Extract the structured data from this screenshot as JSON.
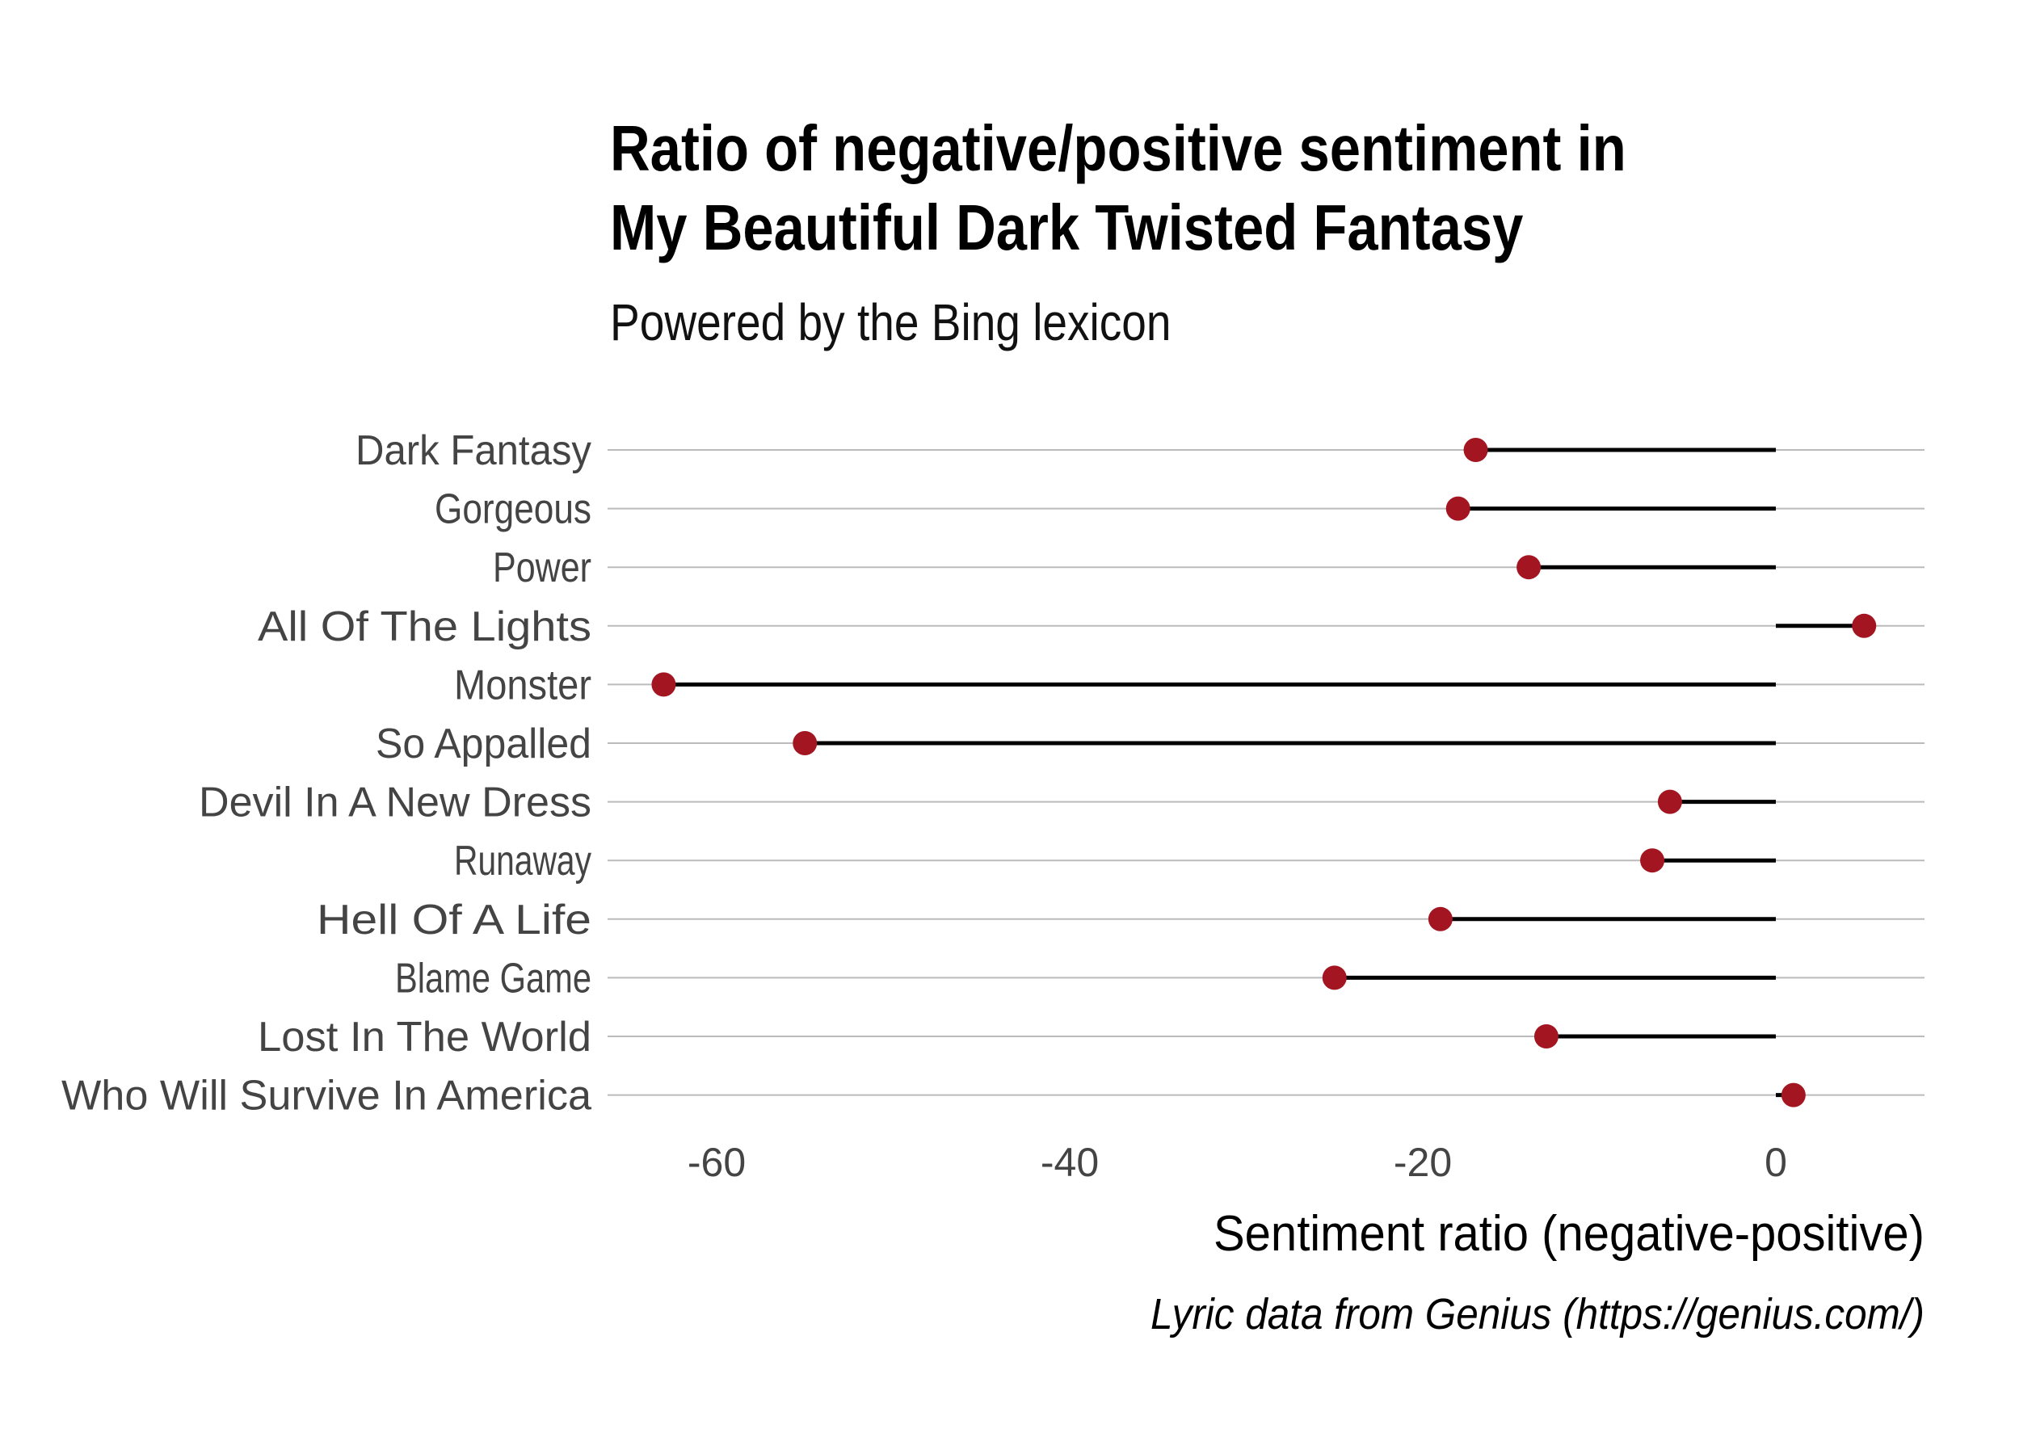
{
  "title_line1": "Ratio of negative/positive sentiment in",
  "title_line2": "My Beautiful Dark Twisted Fantasy",
  "subtitle": "Powered by the Bing lexicon",
  "caption": "Lyric data from Genius (https://genius.com/)",
  "chart_data": {
    "type": "lollipop",
    "title": "Ratio of negative/positive sentiment in My Beautiful Dark Twisted Fantasy",
    "subtitle": "Powered by the Bing lexicon",
    "xlabel": "Sentiment ratio (negative-positive)",
    "ylabel": "",
    "xlim": [
      -66,
      8
    ],
    "x_ticks": [
      -60,
      -40,
      -20,
      0
    ],
    "categories": [
      "Dark Fantasy",
      "Gorgeous",
      "Power",
      "All Of The Lights",
      "Monster",
      "So Appalled",
      "Devil In A New Dress",
      "Runaway",
      "Hell Of A Life",
      "Blame Game",
      "Lost In The World",
      "Who Will Survive In America"
    ],
    "values": [
      -17,
      -18,
      -14,
      5,
      -63,
      -55,
      -6,
      -7,
      -19,
      -25,
      -13,
      1
    ],
    "baseline": 0,
    "grid": true,
    "colors": {
      "point": "#a31621",
      "segment": "#000000",
      "grid": "#bbbbbb"
    }
  }
}
